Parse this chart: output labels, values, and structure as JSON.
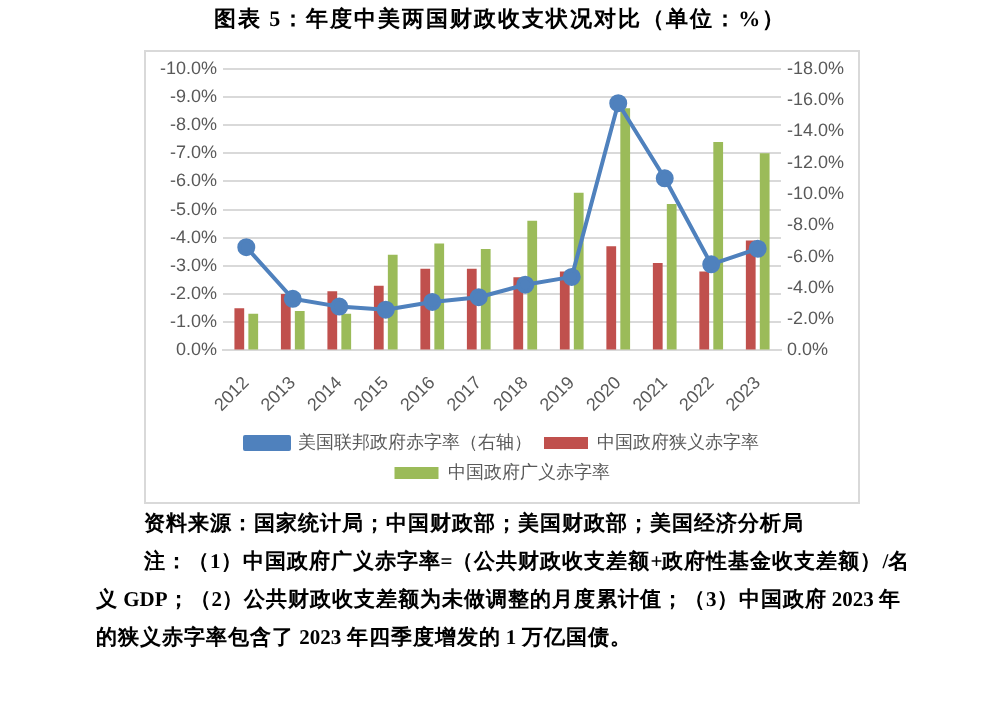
{
  "chart_data": {
    "type": "bar",
    "title": "图表 5：年度中美两国财政收支状况对比（单位：%）",
    "categories": [
      "2012",
      "2013",
      "2014",
      "2015",
      "2016",
      "2017",
      "2018",
      "2019",
      "2020",
      "2021",
      "2022",
      "2023"
    ],
    "series": [
      {
        "name": "中国政府狭义赤字率",
        "color": "#c0504d",
        "values": [
          -1.5,
          -2.0,
          -2.1,
          -2.3,
          -2.9,
          -2.9,
          -2.6,
          -2.8,
          -3.7,
          -3.1,
          -2.8,
          -3.9
        ]
      },
      {
        "name": "中国政府广义赤字率",
        "color": "#9bbb59",
        "values": [
          -1.3,
          -1.4,
          -1.3,
          -3.4,
          -3.8,
          -3.6,
          -4.6,
          -5.6,
          -8.6,
          -5.2,
          -7.4,
          -7.0
        ]
      },
      {
        "name": "美国联邦政府赤字率（右轴）",
        "color": "#4f81bd",
        "type": "line",
        "axis": "y2",
        "marker": "circle",
        "values": [
          -6.6,
          -3.3,
          -2.8,
          -2.6,
          -3.1,
          -3.4,
          -4.2,
          -4.7,
          -15.8,
          -11.0,
          -5.5,
          -6.5
        ]
      }
    ],
    "ylim": [
      0,
      -10
    ],
    "yticks": [
      {
        "value": 0,
        "label": "0.0%"
      },
      {
        "value": -1,
        "label": "-1.0%"
      },
      {
        "value": -2,
        "label": "-2.0%"
      },
      {
        "value": -3,
        "label": "-3.0%"
      },
      {
        "value": -4,
        "label": "-4.0%"
      },
      {
        "value": -5,
        "label": "-5.0%"
      },
      {
        "value": -6,
        "label": "-6.0%"
      },
      {
        "value": -7,
        "label": "-7.0%"
      },
      {
        "value": -8,
        "label": "-8.0%"
      },
      {
        "value": -9,
        "label": "-9.0%"
      },
      {
        "value": -10,
        "label": "-10.0%"
      }
    ],
    "y2lim": [
      0,
      -18
    ],
    "y2ticks": [
      {
        "value": 0,
        "label": "0.0%"
      },
      {
        "value": -2,
        "label": "-2.0%"
      },
      {
        "value": -4,
        "label": "-4.0%"
      },
      {
        "value": -6,
        "label": "-6.0%"
      },
      {
        "value": -8,
        "label": "-8.0%"
      },
      {
        "value": -10,
        "label": "-10.0%"
      },
      {
        "value": -12,
        "label": "-12.0%"
      },
      {
        "value": -14,
        "label": "-14.0%"
      },
      {
        "value": -16,
        "label": "-16.0%"
      },
      {
        "value": -18,
        "label": "-18.0%"
      }
    ],
    "grid": "y",
    "legend": "bottom",
    "annotations": [
      "资料来源：国家统计局；中国财政部；美国财政部；美国经济分析局",
      "注：（1）中国政府广义赤字率=（公共财政收支差额+政府性基金收支差额）/名义 GDP；（2）公共财政收支差额为未做调整的月度累计值；（3）中国政府 2023 年的狭义赤字率包含了 2023 年四季度增发的 1 万亿国债。"
    ]
  }
}
